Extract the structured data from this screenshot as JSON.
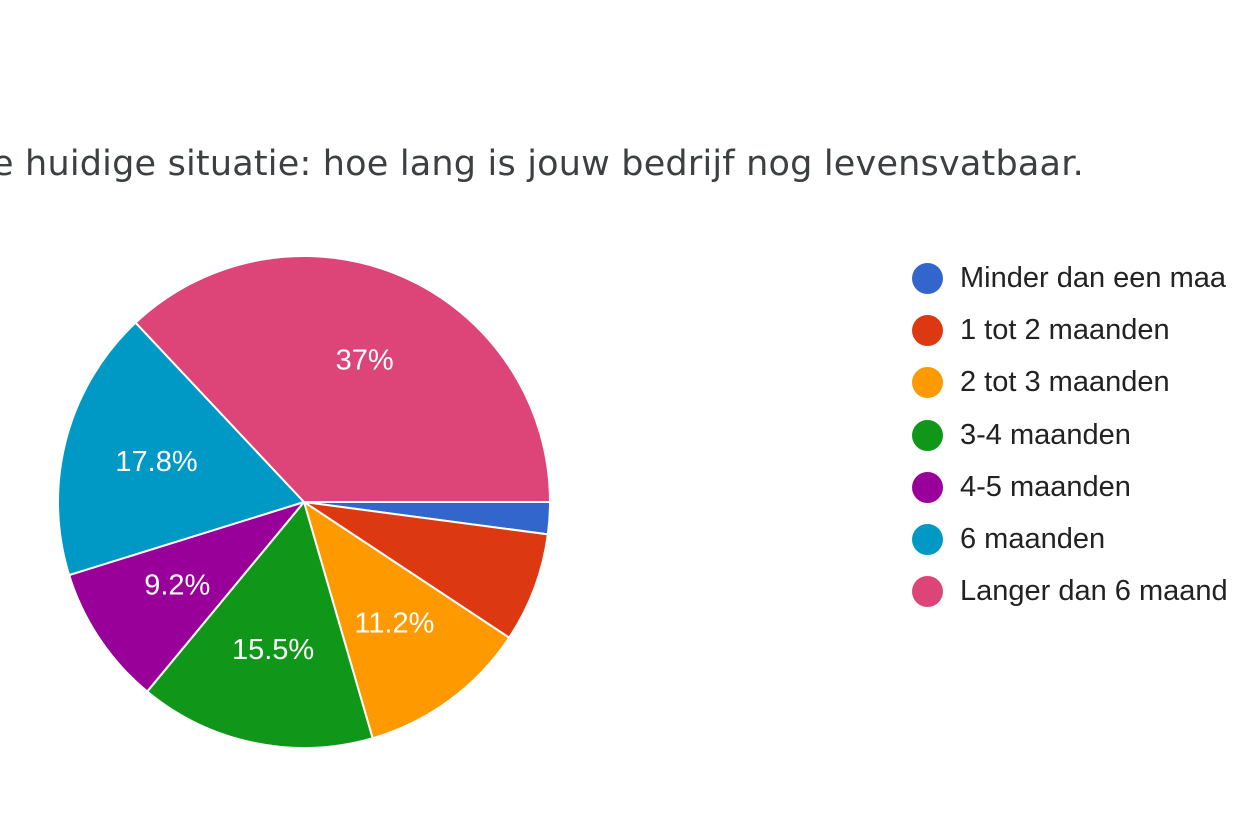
{
  "chart_data": {
    "type": "pie",
    "title": "e huidige situatie: hoe lang is jouw bedrijf nog levensvatbaar.",
    "legend_position": "right",
    "slices": [
      {
        "label": "Minder dan een maa",
        "value": 2.1,
        "value_label": "",
        "color": "#3366cc"
      },
      {
        "label": "1 tot 2 maanden",
        "value": 7.2,
        "value_label": "",
        "color": "#dc3912"
      },
      {
        "label": "2 tot 3 maanden",
        "value": 11.2,
        "value_label": "11.2%",
        "color": "#ff9900"
      },
      {
        "label": "3-4 maanden",
        "value": 15.5,
        "value_label": "15.5%",
        "color": "#109618"
      },
      {
        "label": "4-5 maanden",
        "value": 9.2,
        "value_label": "9.2%",
        "color": "#990099"
      },
      {
        "label": "6 maanden",
        "value": 17.8,
        "value_label": "17.8%",
        "color": "#0099c6"
      },
      {
        "label": "Langer dan 6 maand",
        "value": 37,
        "value_label": "37%",
        "color": "#dd4477"
      }
    ]
  }
}
